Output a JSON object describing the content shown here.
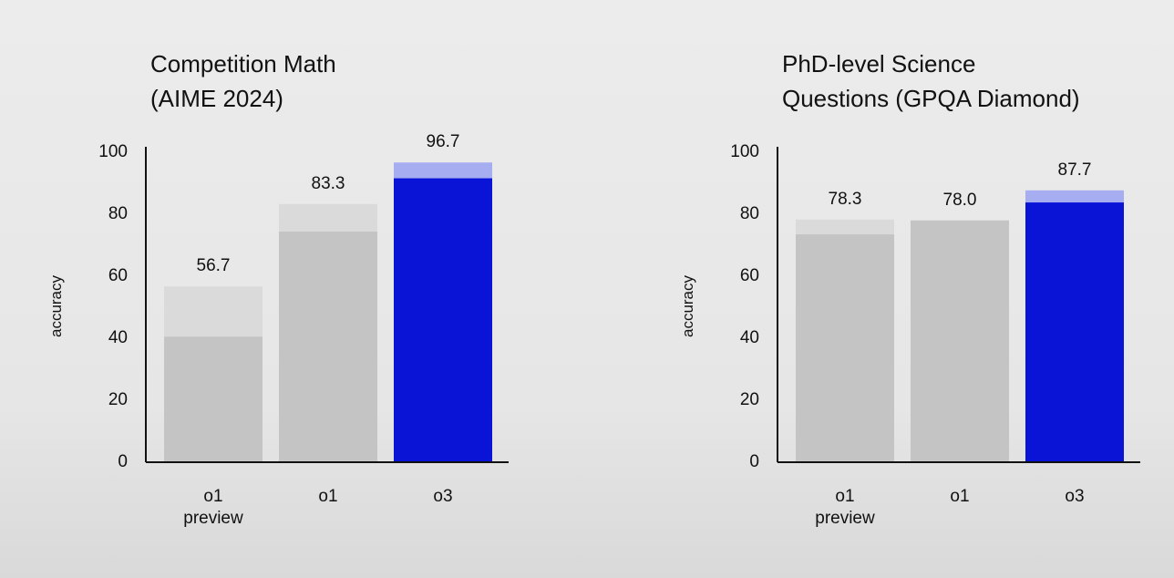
{
  "chart_data": [
    {
      "type": "bar",
      "overlay": true,
      "title": [
        "Competition Math",
        "(AIME 2024)"
      ],
      "ylabel": "accuracy",
      "categories": [
        "o1 preview",
        "o1",
        "o3"
      ],
      "series": [
        {
          "colors": [
            "#dadada",
            "#dadada",
            "#a6adf0"
          ],
          "values": [
            56.7,
            83.3,
            96.7
          ],
          "value_labels": [
            "56.7",
            "83.3",
            "96.7"
          ]
        },
        {
          "colors": [
            "#c4c4c4",
            "#c4c4c4",
            "#0a14d6"
          ],
          "values": [
            40.5,
            74.4,
            91.6
          ]
        }
      ],
      "ylim": [
        0,
        100
      ],
      "yticks": [
        0,
        20,
        40,
        60,
        80,
        100
      ],
      "grid": false
    },
    {
      "type": "bar",
      "overlay": true,
      "title": [
        "PhD-level Science",
        "Questions (GPQA Diamond)"
      ],
      "ylabel": "accuracy",
      "categories": [
        "o1 preview",
        "o1",
        "o3"
      ],
      "series": [
        {
          "colors": [
            "#dadada",
            "#dadada",
            "#a6adf0"
          ],
          "values": [
            78.3,
            78.0,
            87.7
          ],
          "value_labels": [
            "78.3",
            "78.0",
            "87.7"
          ]
        },
        {
          "colors": [
            "#c4c4c4",
            "#c4c4c4",
            "#0a14d6"
          ],
          "values": [
            73.5,
            78.0,
            83.8
          ]
        }
      ],
      "ylim": [
        0,
        100
      ],
      "yticks": [
        0,
        20,
        40,
        60,
        80,
        100
      ],
      "grid": false
    }
  ]
}
